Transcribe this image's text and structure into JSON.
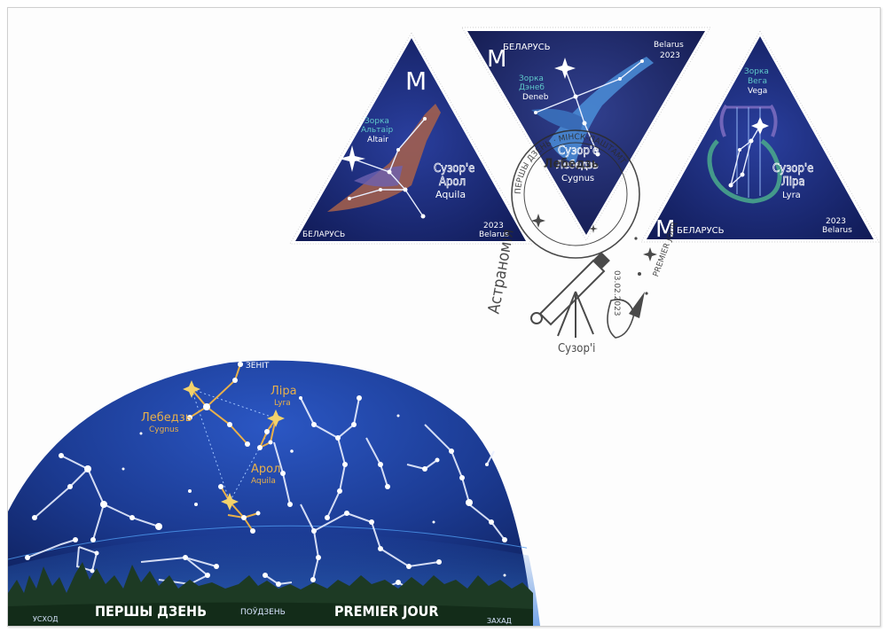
{
  "stamps": [
    {
      "value": "M",
      "country": "БЕЛАРУСЬ",
      "country_latin": "Belarus",
      "year": "2023",
      "star_name_be": "Зорка Альтаір",
      "star_name_be_lines": [
        "Зорка",
        "Альтаір"
      ],
      "star_name_latin": "Altair",
      "constellation_be_lines": [
        "Сузор'е",
        "Арол"
      ],
      "constellation_latin": "Aquila",
      "figure": "eagle-icon"
    },
    {
      "value": "M",
      "country": "БЕЛАРУСЬ",
      "country_latin": "Belarus",
      "year": "2023",
      "star_name_be_lines": [
        "Зорка",
        "Дэнеб"
      ],
      "star_name_latin": "Deneb",
      "constellation_be_lines": [
        "Сузор'е",
        "Лебедзь"
      ],
      "constellation_latin": "Cygnus",
      "figure": "swan-icon"
    },
    {
      "value": "M",
      "country": "БЕЛАРУСЬ",
      "country_latin": "Belarus",
      "year": "2023",
      "star_name_be_lines": [
        "Зорка",
        "Вега"
      ],
      "star_name_latin": "Vega",
      "constellation_be_lines": [
        "Сузор'е",
        "Ліра"
      ],
      "constellation_latin": "Lyra",
      "figure": "lyre-icon"
    }
  ],
  "postmark": {
    "ring_text": "ПЕРШЫ ДЗЕНЬ · МІНСК-ПАШТАМТ",
    "date": "03.02.2023",
    "side_text": "Астраномія",
    "side_text_right": "PREMIER JOUR",
    "bottom_text": "Сузор'і",
    "figure": "telescope-icon"
  },
  "sky_map": {
    "zenith_label": "ЗЕНІТ",
    "labels": [
      {
        "be": "Лебедзь",
        "latin": "Cygnus"
      },
      {
        "be": "Ліра",
        "latin": "Lyra"
      },
      {
        "be": "Арол",
        "latin": "Aquila"
      }
    ],
    "bottom": {
      "east": "УСХОД",
      "first_day_be": "ПЕРШЫ ДЗЕНЬ",
      "south": "ПОЎДЗЕНЬ",
      "first_day_fr": "PREMIER JOUR",
      "west": "ЗАХАД"
    }
  },
  "colors": {
    "sky_dark": "#0f1f5c",
    "sky_mid": "#1d3f9a",
    "horizon": "#2f6fd0",
    "forest": "#1d3a24",
    "label_gold": "#e8b04a",
    "stamp_teal": "#5fc7c9",
    "postmark_ink": "#2b2b2b"
  }
}
